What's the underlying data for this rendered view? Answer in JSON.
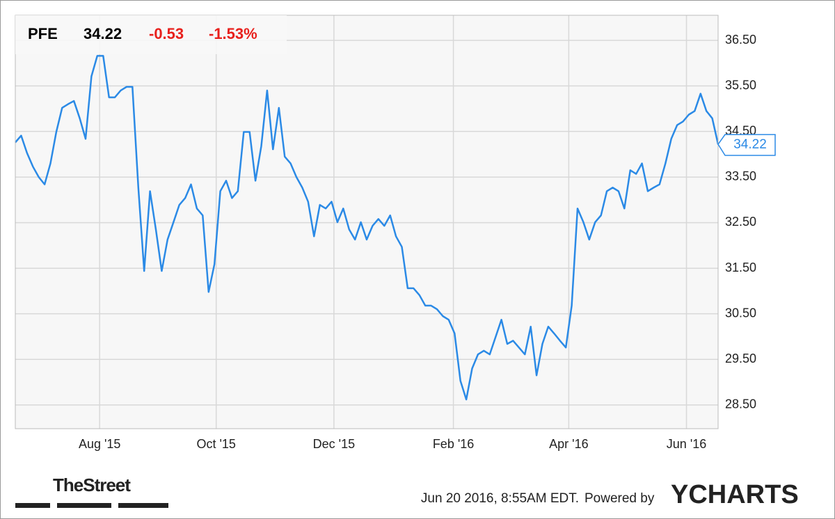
{
  "chart_data": {
    "type": "line",
    "ticker": {
      "symbol": "PFE",
      "price": "34.22",
      "change": "-0.53",
      "change_percent": "-1.53%"
    },
    "series": [
      {
        "name": "PFE",
        "color": "#2b8ae6",
        "values": [
          34.26,
          34.41,
          34.03,
          33.73,
          33.5,
          33.34,
          33.8,
          34.49,
          35.02,
          35.1,
          35.17,
          34.79,
          34.34,
          35.71,
          36.16,
          36.16,
          35.25,
          35.25,
          35.4,
          35.48,
          35.48,
          33.27,
          31.44,
          33.19,
          32.35,
          31.44,
          32.13,
          32.51,
          32.89,
          33.04,
          33.34,
          32.81,
          32.66,
          30.98,
          31.59,
          33.19,
          33.42,
          33.04,
          33.19,
          34.49,
          34.49,
          33.42,
          34.18,
          35.4,
          34.11,
          35.02,
          33.95,
          33.8,
          33.5,
          33.27,
          32.96,
          32.2,
          32.89,
          32.81,
          32.96,
          32.51,
          32.81,
          32.35,
          32.13,
          32.51,
          32.13,
          32.43,
          32.58,
          32.43,
          32.66,
          32.2,
          31.97,
          31.06,
          31.06,
          30.91,
          30.68,
          30.68,
          30.6,
          30.45,
          30.37,
          30.07,
          29.03,
          28.62,
          29.3,
          29.61,
          29.69,
          29.61,
          29.99,
          30.37,
          29.84,
          29.91,
          29.76,
          29.61,
          30.22,
          29.15,
          29.84,
          30.22,
          30.07,
          29.91,
          29.76,
          30.68,
          32.81,
          32.51,
          32.13,
          32.51,
          32.66,
          33.19,
          33.27,
          33.19,
          32.81,
          33.65,
          33.57,
          33.8,
          33.19,
          33.27,
          33.34,
          33.8,
          34.34,
          34.64,
          34.72,
          34.87,
          34.95,
          35.33,
          34.95,
          34.79,
          34.22
        ]
      }
    ],
    "xlim": [
      0,
      120
    ],
    "xticks": [
      {
        "value": 14.4,
        "label": "Aug '15"
      },
      {
        "value": 34.3,
        "label": "Oct '15"
      },
      {
        "value": 54.4,
        "label": "Dec '15"
      },
      {
        "value": 74.8,
        "label": "Feb '16"
      },
      {
        "value": 94.5,
        "label": "Apr '16"
      },
      {
        "value": 114.6,
        "label": "Jun '16"
      }
    ],
    "ylim": [
      27.98,
      37.05
    ],
    "yticks": [
      {
        "value": 28.5,
        "label": "28.50"
      },
      {
        "value": 29.5,
        "label": "29.50"
      },
      {
        "value": 30.5,
        "label": "30.50"
      },
      {
        "value": 31.5,
        "label": "31.50"
      },
      {
        "value": 32.5,
        "label": "32.50"
      },
      {
        "value": 33.5,
        "label": "33.50"
      },
      {
        "value": 34.5,
        "label": "34.50"
      },
      {
        "value": 35.5,
        "label": "35.50"
      },
      {
        "value": 36.5,
        "label": "36.50"
      }
    ],
    "grid": true,
    "footer": {
      "source": "TheStreet",
      "timestamp": "Jun 20 2016, 8:55AM EDT.",
      "powered": "Powered by",
      "brand": "YCHARTS"
    }
  }
}
